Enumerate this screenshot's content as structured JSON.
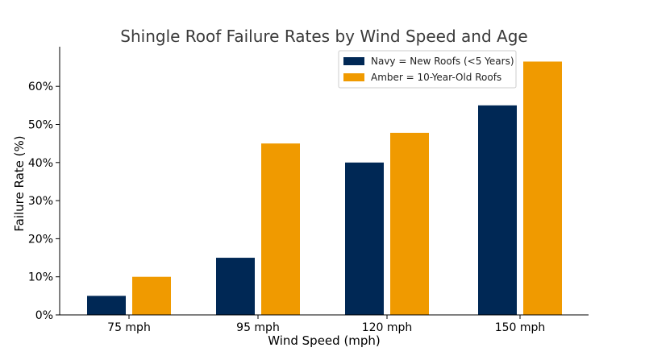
{
  "chart_data": {
    "type": "bar",
    "title": "Shingle Roof Failure Rates by Wind Speed and Age",
    "xlabel": "Wind Speed (mph)",
    "ylabel": "Failure Rate (%)",
    "categories": [
      "75 mph",
      "95 mph",
      "120 mph",
      "150 mph"
    ],
    "series": [
      {
        "name": "Navy = New Roofs (<5 Years)",
        "color": "#002855",
        "values": [
          5,
          15,
          40,
          55
        ]
      },
      {
        "name": "Amber = 10-Year-Old Roofs",
        "color": "#F09A00",
        "values": [
          10,
          45,
          47.8,
          66.5
        ]
      }
    ],
    "ylim": [
      0,
      70
    ],
    "yticks": [
      0,
      10,
      20,
      30,
      40,
      50,
      60
    ],
    "ytick_labels": [
      "0%",
      "10%",
      "20%",
      "30%",
      "40%",
      "50%",
      "60%"
    ],
    "grid": false,
    "legend_position": "top-right"
  }
}
